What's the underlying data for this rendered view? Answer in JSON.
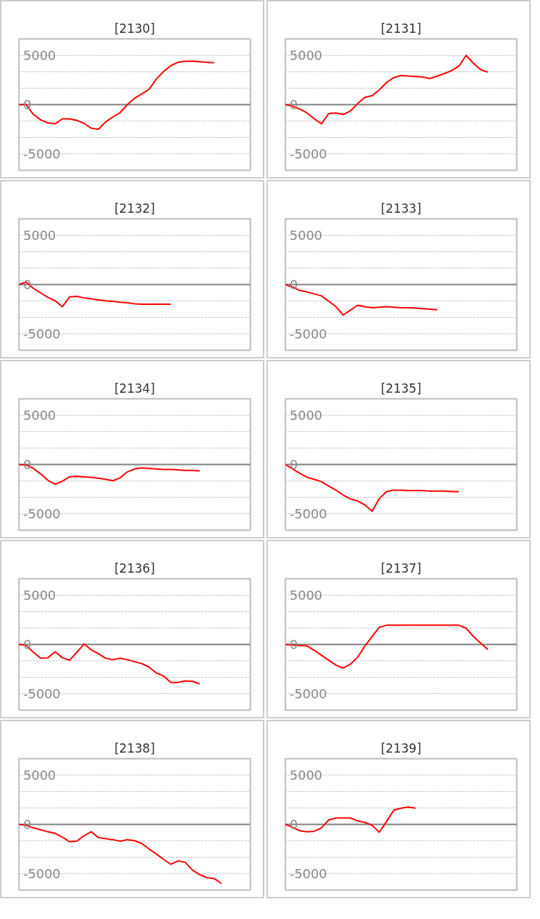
{
  "chart_data": [
    {
      "type": "line",
      "title": "[2130]",
      "categories": [
        null,
        null,
        null,
        null,
        null,
        null,
        null,
        null,
        null,
        null,
        null,
        null,
        null,
        null,
        null,
        null,
        null,
        null,
        null,
        null,
        null,
        null,
        null,
        null,
        null,
        null,
        null,
        null,
        null,
        null,
        null,
        null,
        null
      ],
      "series": [
        {
          "color": "#ff0000",
          "values": [
            0,
            0,
            -1000,
            -1550,
            -1850,
            -1950,
            -1450,
            -1450,
            -1600,
            -1900,
            -2400,
            -2500,
            -1750,
            -1250,
            -800,
            0,
            650,
            1100,
            1550,
            2600,
            3350,
            3950,
            4300,
            4400,
            4400,
            4350,
            4300,
            4250,
            null,
            null,
            null,
            null,
            null
          ]
        }
      ],
      "ylim": [
        -6667,
        6667
      ],
      "yticks": [
        -5000,
        {
          "value": -3333,
          "label": null
        },
        {
          "value": -1667,
          "label": null
        },
        0,
        {
          "value": 1667,
          "label": null
        },
        {
          "value": 3333,
          "label": null
        },
        5000
      ],
      "grid": "y",
      "tick_labels": "y",
      "ref_lines": [
        {
          "axis": "y",
          "value": 0,
          "color": "#808080"
        }
      ]
    },
    {
      "type": "line",
      "title": "[2131]",
      "categories": [
        null,
        null,
        null,
        null,
        null,
        null,
        null,
        null,
        null,
        null,
        null,
        null,
        null,
        null,
        null,
        null,
        null,
        null,
        null,
        null,
        null,
        null,
        null,
        null,
        null,
        null,
        null,
        null,
        null,
        null,
        null,
        null,
        null
      ],
      "series": [
        {
          "color": "#ff0000",
          "values": [
            0,
            -150,
            -450,
            -850,
            -1450,
            -1950,
            -900,
            -850,
            -1000,
            -650,
            100,
            750,
            900,
            1500,
            2250,
            2750,
            2950,
            2900,
            2850,
            2800,
            2650,
            2900,
            3150,
            3450,
            3900,
            5000,
            4200,
            3550,
            3300,
            null,
            null,
            null,
            null
          ]
        }
      ],
      "ylim": [
        -6667,
        6667
      ],
      "yticks": [
        -5000,
        {
          "value": -3333,
          "label": null
        },
        {
          "value": -1667,
          "label": null
        },
        0,
        {
          "value": 1667,
          "label": null
        },
        {
          "value": 3333,
          "label": null
        },
        5000
      ],
      "grid": "y",
      "tick_labels": "y",
      "ref_lines": [
        {
          "axis": "y",
          "value": 0,
          "color": "#808080"
        }
      ]
    },
    {
      "type": "line",
      "title": "[2132]",
      "categories": [
        null,
        null,
        null,
        null,
        null,
        null,
        null,
        null,
        null,
        null,
        null,
        null,
        null,
        null,
        null,
        null,
        null,
        null,
        null,
        null,
        null,
        null,
        null,
        null,
        null,
        null,
        null,
        null,
        null,
        null,
        null,
        null,
        null
      ],
      "series": [
        {
          "color": "#ff0000",
          "values": [
            0,
            250,
            -400,
            -850,
            -1300,
            -1650,
            -2250,
            -1250,
            -1200,
            -1350,
            -1450,
            -1550,
            -1650,
            -1700,
            -1800,
            -1850,
            -1950,
            -2000,
            -2000,
            -2000,
            -2000,
            -2000,
            null,
            null,
            null,
            null,
            null,
            null,
            null,
            null,
            null,
            null,
            null
          ]
        }
      ],
      "ylim": [
        -6667,
        6667
      ],
      "yticks": [
        -5000,
        {
          "value": -3333,
          "label": null
        },
        {
          "value": -1667,
          "label": null
        },
        0,
        {
          "value": 1667,
          "label": null
        },
        {
          "value": 3333,
          "label": null
        },
        5000
      ],
      "grid": "y",
      "tick_labels": "y",
      "ref_lines": [
        {
          "axis": "y",
          "value": 0,
          "color": "#808080"
        }
      ]
    },
    {
      "type": "line",
      "title": "[2133]",
      "categories": [
        null,
        null,
        null,
        null,
        null,
        null,
        null,
        null,
        null,
        null,
        null,
        null,
        null,
        null,
        null,
        null,
        null,
        null,
        null,
        null,
        null,
        null,
        null,
        null,
        null,
        null,
        null,
        null,
        null,
        null,
        null,
        null,
        null
      ],
      "series": [
        {
          "color": "#ff0000",
          "values": [
            0,
            -250,
            -600,
            -750,
            -950,
            -1150,
            -1700,
            -2250,
            -3100,
            -2600,
            -2100,
            -2250,
            -2350,
            -2300,
            -2250,
            -2300,
            -2350,
            -2350,
            -2400,
            -2450,
            -2500,
            -2550,
            null,
            null,
            null,
            null,
            null,
            null,
            null,
            null,
            null,
            null,
            null
          ]
        }
      ],
      "ylim": [
        -6667,
        6667
      ],
      "yticks": [
        -5000,
        {
          "value": -3333,
          "label": null
        },
        {
          "value": -1667,
          "label": null
        },
        0,
        {
          "value": 1667,
          "label": null
        },
        {
          "value": 3333,
          "label": null
        },
        5000
      ],
      "grid": "y",
      "tick_labels": "y",
      "ref_lines": [
        {
          "axis": "y",
          "value": 0,
          "color": "#808080"
        }
      ]
    },
    {
      "type": "line",
      "title": "[2134]",
      "categories": [
        null,
        null,
        null,
        null,
        null,
        null,
        null,
        null,
        null,
        null,
        null,
        null,
        null,
        null,
        null,
        null,
        null,
        null,
        null,
        null,
        null,
        null,
        null,
        null,
        null,
        null,
        null,
        null,
        null,
        null,
        null,
        null,
        null
      ],
      "series": [
        {
          "color": "#ff0000",
          "values": [
            0,
            -50,
            -400,
            -950,
            -1600,
            -2000,
            -1700,
            -1250,
            -1200,
            -1250,
            -1300,
            -1400,
            -1500,
            -1650,
            -1350,
            -750,
            -450,
            -350,
            -400,
            -450,
            -500,
            -500,
            -550,
            -600,
            -600,
            -650,
            null,
            null,
            null,
            null,
            null,
            null,
            null
          ]
        }
      ],
      "ylim": [
        -6667,
        6667
      ],
      "yticks": [
        -5000,
        {
          "value": -3333,
          "label": null
        },
        {
          "value": -1667,
          "label": null
        },
        0,
        {
          "value": 1667,
          "label": null
        },
        {
          "value": 3333,
          "label": null
        },
        5000
      ],
      "grid": "y",
      "tick_labels": "y",
      "ref_lines": [
        {
          "axis": "y",
          "value": 0,
          "color": "#808080"
        }
      ]
    },
    {
      "type": "line",
      "title": "[2135]",
      "categories": [
        null,
        null,
        null,
        null,
        null,
        null,
        null,
        null,
        null,
        null,
        null,
        null,
        null,
        null,
        null,
        null,
        null,
        null,
        null,
        null,
        null,
        null,
        null,
        null,
        null,
        null,
        null,
        null,
        null,
        null,
        null,
        null,
        null
      ],
      "series": [
        {
          "color": "#ff0000",
          "values": [
            0,
            -450,
            -900,
            -1300,
            -1500,
            -1750,
            -2200,
            -2600,
            -3100,
            -3500,
            -3700,
            -4100,
            -4750,
            -3450,
            -2750,
            -2600,
            -2600,
            -2650,
            -2650,
            -2650,
            -2700,
            -2700,
            -2700,
            -2750,
            -2750,
            null,
            null,
            null,
            null,
            null,
            null,
            null,
            null
          ]
        }
      ],
      "ylim": [
        -6667,
        6667
      ],
      "yticks": [
        -5000,
        {
          "value": -3333,
          "label": null
        },
        {
          "value": -1667,
          "label": null
        },
        0,
        {
          "value": 1667,
          "label": null
        },
        {
          "value": 3333,
          "label": null
        },
        5000
      ],
      "grid": "y",
      "tick_labels": "y",
      "ref_lines": [
        {
          "axis": "y",
          "value": 0,
          "color": "#808080"
        }
      ]
    },
    {
      "type": "line",
      "title": "[2136]",
      "categories": [
        null,
        null,
        null,
        null,
        null,
        null,
        null,
        null,
        null,
        null,
        null,
        null,
        null,
        null,
        null,
        null,
        null,
        null,
        null,
        null,
        null,
        null,
        null,
        null,
        null,
        null,
        null,
        null,
        null,
        null,
        null,
        null,
        null
      ],
      "series": [
        {
          "color": "#ff0000",
          "values": [
            0,
            -100,
            -800,
            -1400,
            -1350,
            -750,
            -1350,
            -1600,
            -800,
            50,
            -550,
            -950,
            -1400,
            -1550,
            -1400,
            -1550,
            -1750,
            -1950,
            -2300,
            -2900,
            -3200,
            -3850,
            -3850,
            -3700,
            -3750,
            -4000,
            null,
            null,
            null,
            null,
            null,
            null,
            null
          ]
        }
      ],
      "ylim": [
        -6667,
        6667
      ],
      "yticks": [
        -5000,
        {
          "value": -3333,
          "label": null
        },
        {
          "value": -1667,
          "label": null
        },
        0,
        {
          "value": 1667,
          "label": null
        },
        {
          "value": 3333,
          "label": null
        },
        5000
      ],
      "grid": "y",
      "tick_labels": "y",
      "ref_lines": [
        {
          "axis": "y",
          "value": 0,
          "color": "#808080"
        }
      ]
    },
    {
      "type": "line",
      "title": "[2137]",
      "categories": [
        null,
        null,
        null,
        null,
        null,
        null,
        null,
        null,
        null,
        null,
        null,
        null,
        null,
        null,
        null,
        null,
        null,
        null,
        null,
        null,
        null,
        null,
        null,
        null,
        null,
        null,
        null,
        null,
        null,
        null,
        null,
        null,
        null
      ],
      "series": [
        {
          "color": "#ff0000",
          "values": [
            0,
            -50,
            -100,
            -150,
            -600,
            -1100,
            -1600,
            -2100,
            -2400,
            -2000,
            -1300,
            -150,
            800,
            1750,
            1950,
            1950,
            1950,
            1950,
            1950,
            1950,
            1950,
            1950,
            1950,
            1950,
            1950,
            1650,
            800,
            150,
            -500,
            null,
            null,
            null,
            null
          ]
        }
      ],
      "ylim": [
        -6667,
        6667
      ],
      "yticks": [
        -5000,
        {
          "value": -3333,
          "label": null
        },
        {
          "value": -1667,
          "label": null
        },
        0,
        {
          "value": 1667,
          "label": null
        },
        {
          "value": 3333,
          "label": null
        },
        5000
      ],
      "grid": "y",
      "tick_labels": "y",
      "ref_lines": [
        {
          "axis": "y",
          "value": 0,
          "color": "#808080"
        }
      ]
    },
    {
      "type": "line",
      "title": "[2138]",
      "categories": [
        null,
        null,
        null,
        null,
        null,
        null,
        null,
        null,
        null,
        null,
        null,
        null,
        null,
        null,
        null,
        null,
        null,
        null,
        null,
        null,
        null,
        null,
        null,
        null,
        null,
        null,
        null,
        null,
        null,
        null,
        null,
        null,
        null
      ],
      "series": [
        {
          "color": "#ff0000",
          "values": [
            0,
            -100,
            -350,
            -550,
            -750,
            -900,
            -1300,
            -1750,
            -1700,
            -1150,
            -750,
            -1350,
            -1450,
            -1550,
            -1700,
            -1550,
            -1650,
            -1950,
            -2500,
            -3000,
            -3550,
            -4050,
            -3700,
            -3850,
            -4650,
            -5100,
            -5400,
            -5500,
            -6000,
            null,
            null,
            null,
            null
          ]
        }
      ],
      "ylim": [
        -6667,
        6667
      ],
      "yticks": [
        -5000,
        {
          "value": -3333,
          "label": null
        },
        {
          "value": -1667,
          "label": null
        },
        0,
        {
          "value": 1667,
          "label": null
        },
        {
          "value": 3333,
          "label": null
        },
        5000
      ],
      "grid": "y",
      "tick_labels": "y",
      "ref_lines": [
        {
          "axis": "y",
          "value": 0,
          "color": "#808080"
        }
      ]
    },
    {
      "type": "line",
      "title": "[2139]",
      "categories": [
        null,
        null,
        null,
        null,
        null,
        null,
        null,
        null,
        null,
        null,
        null,
        null,
        null,
        null,
        null,
        null,
        null,
        null,
        null,
        null,
        null,
        null,
        null,
        null,
        null,
        null,
        null,
        null,
        null,
        null,
        null,
        null,
        null
      ],
      "series": [
        {
          "color": "#ff0000",
          "values": [
            0,
            -300,
            -650,
            -750,
            -700,
            -350,
            450,
            650,
            650,
            650,
            350,
            200,
            -100,
            -800,
            300,
            1450,
            1650,
            1750,
            1650,
            null,
            null,
            null,
            null,
            null,
            null,
            null,
            null,
            null,
            null,
            null,
            null,
            null,
            null
          ]
        }
      ],
      "ylim": [
        -6667,
        6667
      ],
      "yticks": [
        -5000,
        {
          "value": -3333,
          "label": null
        },
        {
          "value": -1667,
          "label": null
        },
        0,
        {
          "value": 1667,
          "label": null
        },
        {
          "value": 3333,
          "label": null
        },
        5000
      ],
      "grid": "y",
      "tick_labels": "y",
      "ref_lines": [
        {
          "axis": "y",
          "value": 0,
          "color": "#808080"
        }
      ]
    }
  ]
}
